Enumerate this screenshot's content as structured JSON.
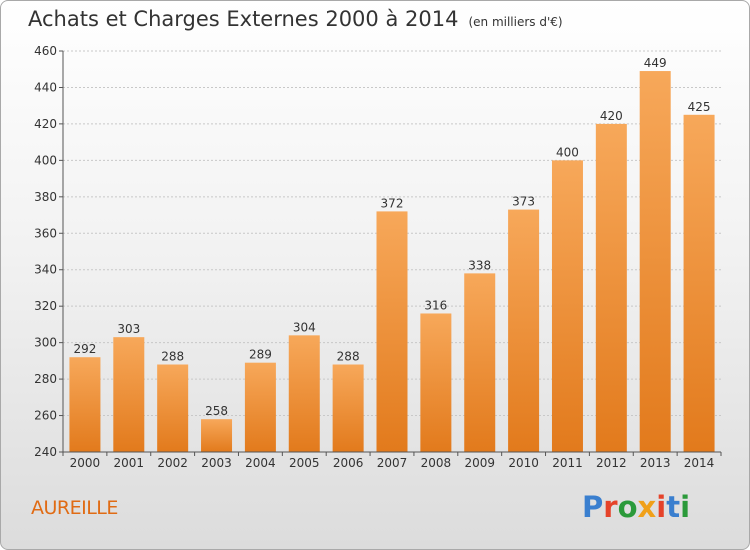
{
  "header": {
    "title": "Achats et Charges Externes 2000 à 2014",
    "unit": "(en milliers d'€)"
  },
  "footer": {
    "commune": "AUREILLE",
    "brand": "Proxiti",
    "brand_colors": [
      "#3a7fcf",
      "#e5432a",
      "#2b9a3a",
      "#f0a019",
      "#e5432a",
      "#3a7fcf",
      "#2b9a3a"
    ]
  },
  "colors": {
    "bar_light": "#f7a85a",
    "bar_dark": "#e27a1c",
    "grid": "#c8c8c8",
    "axis": "#555555",
    "text": "#333333"
  },
  "chart_data": {
    "type": "bar",
    "title": "Achats et Charges Externes 2000 à 2014",
    "categories": [
      "2000",
      "2001",
      "2002",
      "2003",
      "2004",
      "2005",
      "2006",
      "2007",
      "2008",
      "2009",
      "2010",
      "2011",
      "2012",
      "2013",
      "2014"
    ],
    "values": [
      292,
      303,
      288,
      258,
      289,
      304,
      288,
      372,
      316,
      338,
      373,
      400,
      420,
      449,
      425
    ],
    "ylim": [
      240,
      460
    ],
    "yticks": [
      240,
      260,
      280,
      300,
      320,
      340,
      360,
      380,
      400,
      420,
      440,
      460
    ],
    "grid": true,
    "xlabel": "",
    "ylabel": ""
  }
}
